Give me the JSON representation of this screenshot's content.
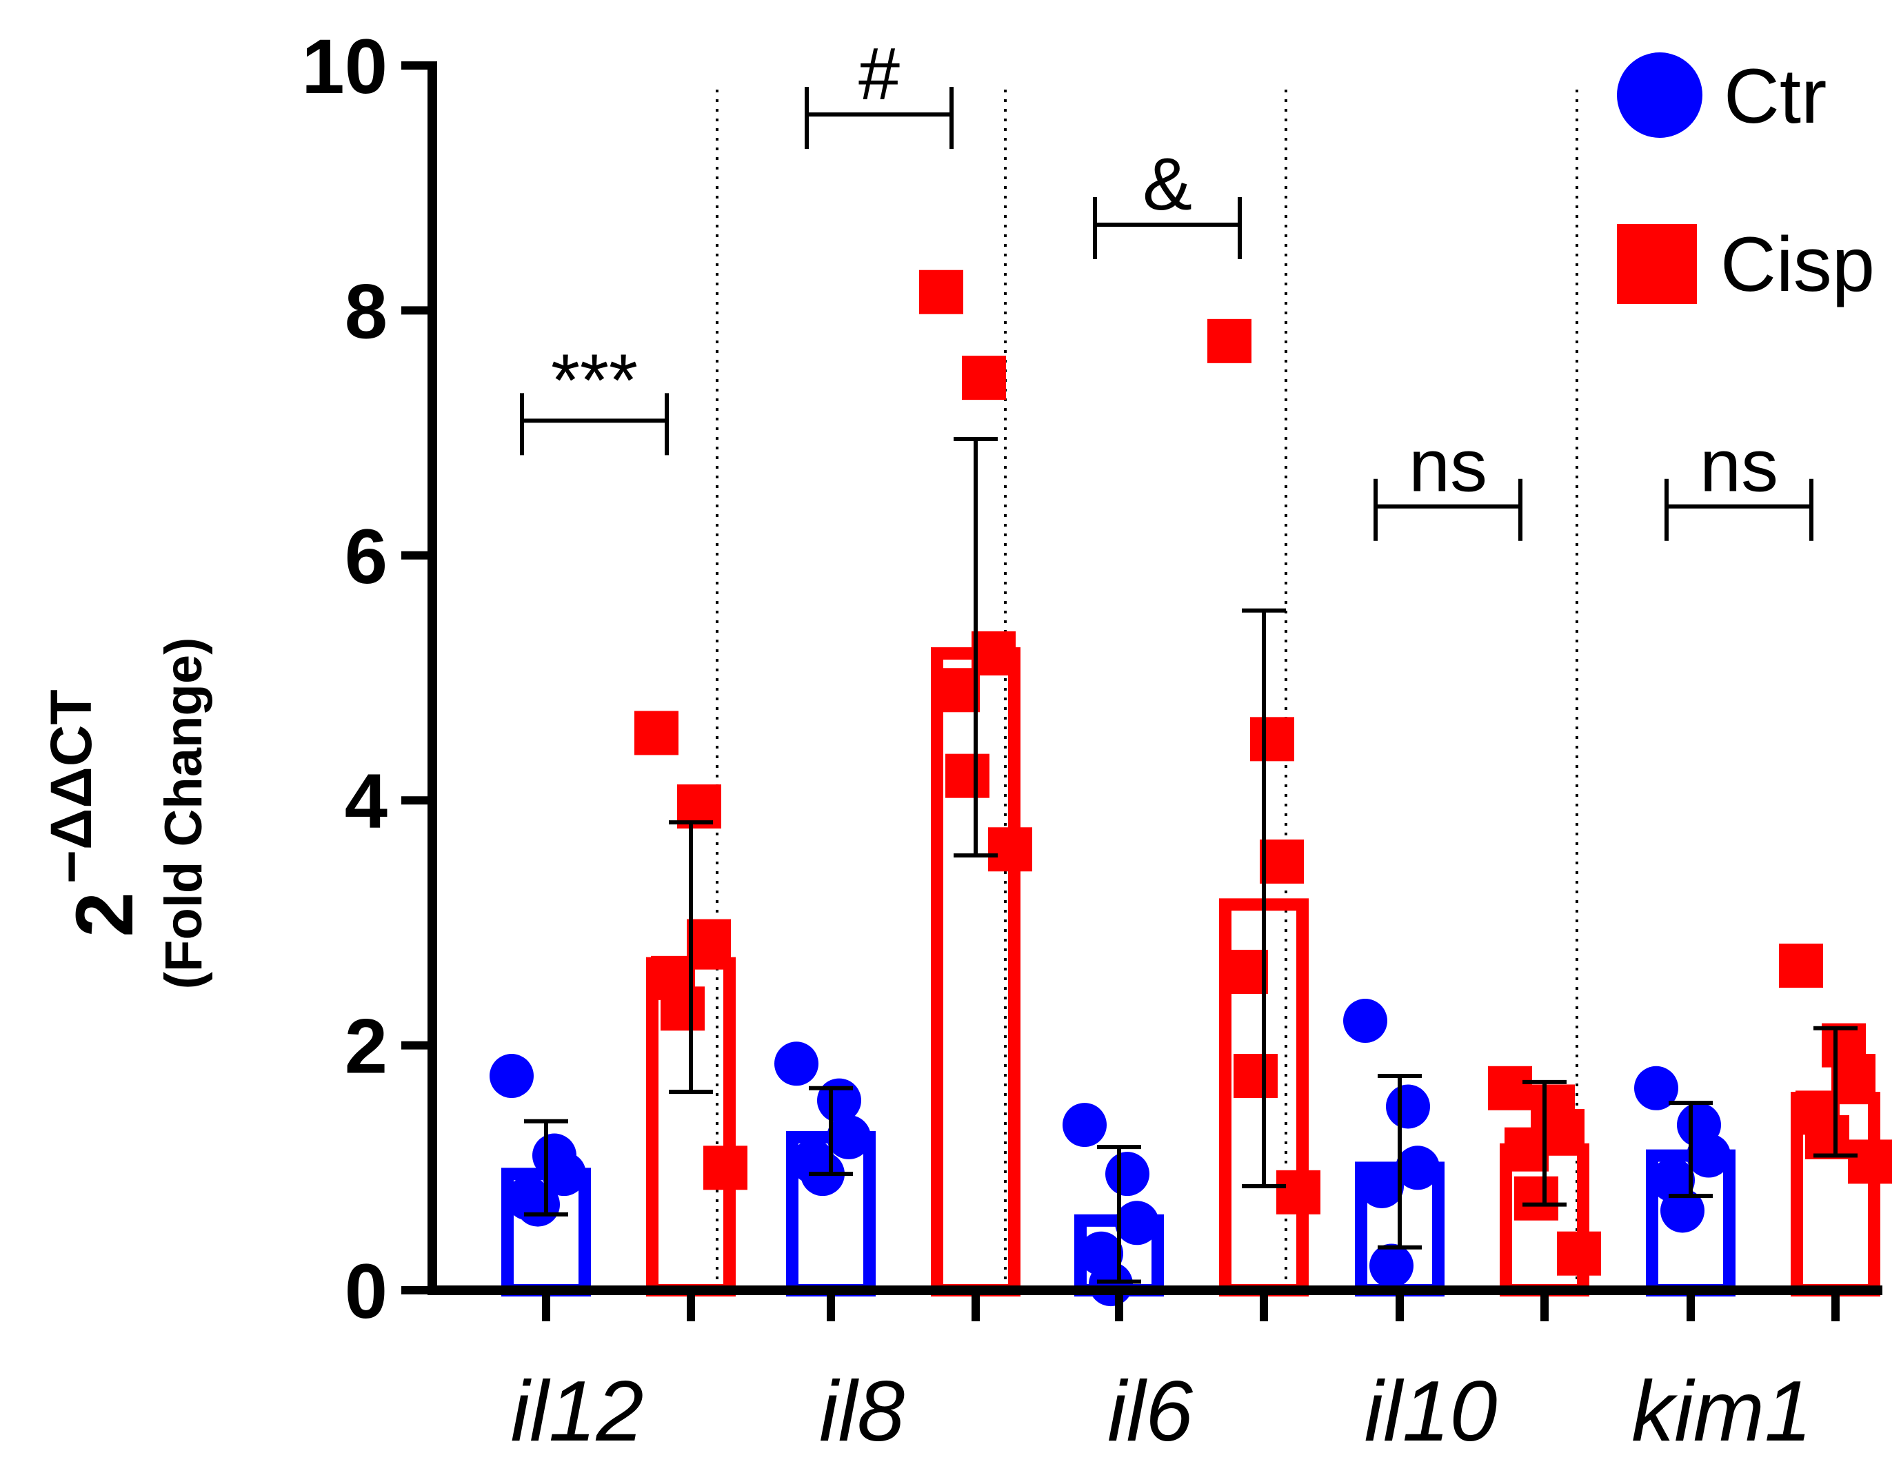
{
  "chart_data": {
    "type": "bar",
    "title": "",
    "xlabel": "",
    "ylabel": {
      "base": "2",
      "superscript": "−ΔΔCT",
      "subtitle": "(Fold Change)"
    },
    "ylim": [
      0,
      10
    ],
    "yticks": [
      "0",
      "2",
      "4",
      "6",
      "8",
      "10"
    ],
    "categories": [
      "il12",
      "il8",
      "il6",
      "il10",
      "kim1"
    ],
    "series": [
      {
        "name": "Ctr",
        "color": "#0000ff",
        "marker": "circle",
        "means": [
          1.0,
          1.3,
          0.62,
          1.05,
          1.15
        ],
        "sd": [
          0.38,
          0.35,
          0.55,
          0.7,
          0.38
        ],
        "points": [
          [
            1.75,
            1.1,
            0.95,
            0.75,
            0.7
          ],
          [
            1.85,
            1.55,
            1.25,
            1.05,
            0.95
          ],
          [
            1.35,
            0.95,
            0.55,
            0.3,
            0.05
          ],
          [
            2.2,
            1.5,
            1.0,
            0.85,
            0.2
          ],
          [
            1.65,
            1.35,
            1.1,
            0.9,
            0.65
          ]
        ]
      },
      {
        "name": "Cisp",
        "color": "#ff0000",
        "marker": "square",
        "means": [
          2.72,
          5.25,
          3.2,
          1.2,
          1.62
        ],
        "sd": [
          1.1,
          1.7,
          2.35,
          0.5,
          0.52
        ],
        "points": [
          [
            4.55,
            3.95,
            2.85,
            2.55,
            2.3,
            1.0
          ],
          [
            8.15,
            7.45,
            5.2,
            4.9,
            4.2,
            3.6
          ],
          [
            7.75,
            4.5,
            3.5,
            2.6,
            1.75,
            0.8
          ],
          [
            1.65,
            1.5,
            1.3,
            1.15,
            0.75,
            0.3
          ],
          [
            2.65,
            2.0,
            1.75,
            1.45,
            1.25,
            1.05
          ]
        ]
      }
    ],
    "significance": [
      {
        "label": "***",
        "y": 7.1
      },
      {
        "label": "#",
        "y": 9.6
      },
      {
        "label": "&",
        "y": 8.7
      },
      {
        "label": "ns",
        "y": 6.4
      },
      {
        "label": "ns",
        "y": 6.4
      }
    ],
    "legend": {
      "position": "top-right",
      "entries": [
        "Ctr",
        "Cisp"
      ]
    }
  }
}
